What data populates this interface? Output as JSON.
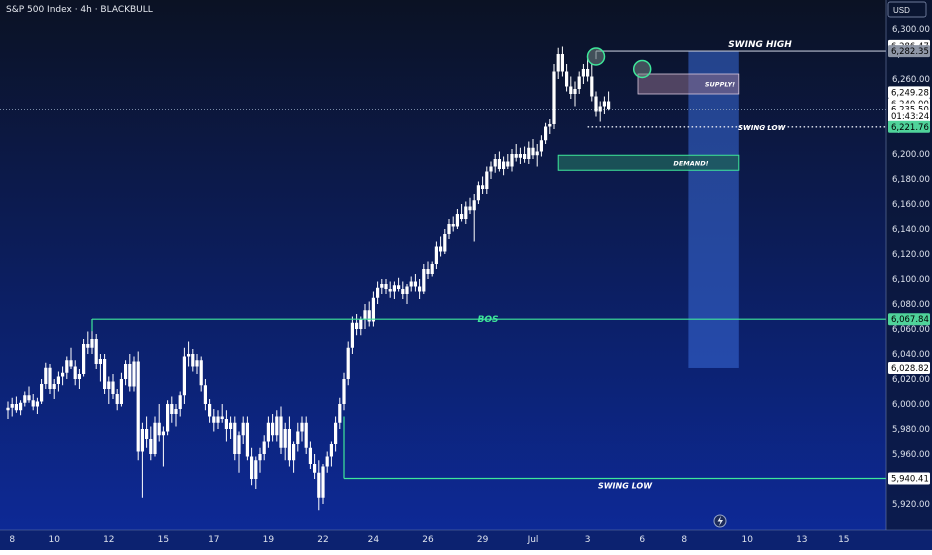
{
  "chart_data": {
    "type": "candlestick",
    "title": "S&P 500 Index · 4h · BLACKBULL",
    "currency": "USD",
    "colors": {
      "bg_top": "#0b1224",
      "bg_bottom": "#0d2a9a",
      "candle": "#ffffff",
      "zone_line": "#3ee79a",
      "label": "#3ee79a"
    },
    "y_axis": {
      "ticks": [
        "6,300.00",
        "6,280.00",
        "6,260.00",
        "6,240.00",
        "6,220.00",
        "6,200.00",
        "6,180.00",
        "6,160.00",
        "6,140.00",
        "6,120.00",
        "6,100.00",
        "6,080.00",
        "6,060.00",
        "6,040.00",
        "6,020.00",
        "6,000.00",
        "5,980.00",
        "5,960.00",
        "5,940.00",
        "5,920.00"
      ],
      "tick_values": [
        6300,
        6280,
        6260,
        6240,
        6220,
        6200,
        6180,
        6160,
        6140,
        6120,
        6100,
        6080,
        6060,
        6040,
        6020,
        6000,
        5980,
        5960,
        5940,
        5920
      ],
      "range": [
        5910,
        6305
      ]
    },
    "x_axis": {
      "ticks": [
        "8",
        "10",
        "12",
        "15",
        "17",
        "19",
        "22",
        "24",
        "26",
        "29",
        "Jul",
        "3",
        "6",
        "8",
        "10",
        "13",
        "15"
      ],
      "tick_index": [
        1,
        11,
        24,
        37,
        49,
        62,
        75,
        87,
        100,
        113,
        125,
        138,
        151,
        161,
        176,
        189,
        199
      ]
    },
    "price_labels": [
      {
        "text": "6,286.47",
        "value": 6286.47,
        "style": "white"
      },
      {
        "text": "6,282.35",
        "value": 6282.35,
        "style": "grey"
      },
      {
        "text": "6,249.28",
        "value": 6249.28,
        "style": "white"
      },
      {
        "text": "6,240.00",
        "value": 6240.0,
        "style": "partial"
      },
      {
        "text": "6,235.50",
        "value": 6235.5,
        "style": "white"
      },
      {
        "text": "01:43:24",
        "value": 6230.5,
        "style": "white"
      },
      {
        "text": "6,221.76",
        "value": 6221.76,
        "style": "green"
      },
      {
        "text": "6,067.84",
        "value": 6067.84,
        "style": "green"
      },
      {
        "text": "6,028.82",
        "value": 6028.82,
        "style": "white"
      },
      {
        "text": "5,940.41",
        "value": 5940.41,
        "style": "white"
      }
    ],
    "annotations": {
      "bos": {
        "label": "BOS",
        "price": 6067.84,
        "from": 20,
        "to": 205
      },
      "swing_low_bottom": {
        "label": "SWING LOW",
        "price": 5940.41,
        "from": 80,
        "to": 205
      },
      "swing_high": {
        "label": "SWING HIGH",
        "price": 6282.35,
        "from": 140,
        "to": 205
      },
      "swing_low_top": {
        "label": "SWING LOW",
        "price": 6221.76,
        "from": 138,
        "to": 205
      },
      "current_price": 6235.5,
      "supply": {
        "label": "SUPPLY!",
        "top": 6264.0,
        "bottom": 6248.0,
        "from": 150,
        "to": 174
      },
      "demand": {
        "label": "DEMAND!",
        "top": 6199.0,
        "bottom": 6187.0,
        "from": 131,
        "to": 174
      },
      "projection": {
        "top": 6282.35,
        "bottom": 6028.82,
        "from": 162,
        "to": 174
      }
    },
    "candles": [
      [
        5995,
        6002,
        5988,
        5997
      ],
      [
        5997,
        6005,
        5990,
        6000
      ],
      [
        6000,
        6006,
        5993,
        5995
      ],
      [
        5995,
        6003,
        5991,
        6001
      ],
      [
        6001,
        6010,
        5998,
        6007
      ],
      [
        6007,
        6014,
        6001,
        6003
      ],
      [
        6003,
        6008,
        5995,
        5998
      ],
      [
        5998,
        6005,
        5992,
        6002
      ],
      [
        6002,
        6020,
        6000,
        6016
      ],
      [
        6016,
        6033,
        6012,
        6029
      ],
      [
        6029,
        6032,
        6008,
        6012
      ],
      [
        6012,
        6020,
        6004,
        6016
      ],
      [
        6016,
        6026,
        6010,
        6022
      ],
      [
        6022,
        6030,
        6015,
        6025
      ],
      [
        6025,
        6038,
        6020,
        6035
      ],
      [
        6035,
        6045,
        6028,
        6030
      ],
      [
        6030,
        6035,
        6015,
        6020
      ],
      [
        6020,
        6028,
        6012,
        6024
      ],
      [
        6024,
        6052,
        6022,
        6048
      ],
      [
        6048,
        6058,
        6040,
        6045
      ],
      [
        6045,
        6068,
        6040,
        6052
      ],
      [
        6052,
        6056,
        6028,
        6032
      ],
      [
        6032,
        6040,
        6018,
        6036
      ],
      [
        6036,
        6040,
        6008,
        6012
      ],
      [
        6012,
        6022,
        6000,
        6018
      ],
      [
        6018,
        6024,
        6004,
        6008
      ],
      [
        6008,
        6012,
        5995,
        6000
      ],
      [
        6000,
        6025,
        5998,
        6020
      ],
      [
        6020,
        6035,
        6015,
        6032
      ],
      [
        6032,
        6040,
        6010,
        6014
      ],
      [
        6014,
        6038,
        6010,
        6034
      ],
      [
        6034,
        6042,
        5955,
        5962
      ],
      [
        5962,
        5985,
        5925,
        5980
      ],
      [
        5980,
        5990,
        5965,
        5972
      ],
      [
        5972,
        5982,
        5955,
        5960
      ],
      [
        5960,
        5990,
        5958,
        5985
      ],
      [
        5985,
        6000,
        5970,
        5975
      ],
      [
        5975,
        5982,
        5950,
        5978
      ],
      [
        5978,
        6003,
        5975,
        6000
      ],
      [
        6000,
        6006,
        5985,
        5992
      ],
      [
        5992,
        6000,
        5982,
        5996
      ],
      [
        5996,
        6010,
        5990,
        6007
      ],
      [
        6007,
        6045,
        6000,
        6038
      ],
      [
        6038,
        6050,
        6030,
        6040
      ],
      [
        6040,
        6044,
        6026,
        6030
      ],
      [
        6030,
        6040,
        6024,
        6035
      ],
      [
        6035,
        6038,
        6010,
        6015
      ],
      [
        6015,
        6020,
        5995,
        6000
      ],
      [
        6000,
        6004,
        5985,
        5990
      ],
      [
        5990,
        5996,
        5978,
        5985
      ],
      [
        5985,
        5995,
        5980,
        5990
      ],
      [
        5990,
        6000,
        5985,
        5988
      ],
      [
        5988,
        5995,
        5970,
        5980
      ],
      [
        5980,
        5990,
        5972,
        5985
      ],
      [
        5985,
        5990,
        5955,
        5960
      ],
      [
        5960,
        5978,
        5945,
        5975
      ],
      [
        5975,
        5990,
        5968,
        5985
      ],
      [
        5985,
        5990,
        5955,
        5958
      ],
      [
        5958,
        5965,
        5935,
        5940
      ],
      [
        5940,
        5958,
        5932,
        5955
      ],
      [
        5955,
        5965,
        5945,
        5960
      ],
      [
        5960,
        5975,
        5955,
        5970
      ],
      [
        5970,
        5990,
        5965,
        5985
      ],
      [
        5985,
        5992,
        5970,
        5975
      ],
      [
        5975,
        5995,
        5970,
        5990
      ],
      [
        5990,
        5998,
        5960,
        5965
      ],
      [
        5965,
        5985,
        5955,
        5980
      ],
      [
        5980,
        5990,
        5950,
        5955
      ],
      [
        5955,
        5970,
        5945,
        5968
      ],
      [
        5968,
        5985,
        5962,
        5978
      ],
      [
        5978,
        5990,
        5970,
        5985
      ],
      [
        5985,
        5990,
        5960,
        5965
      ],
      [
        5965,
        5970,
        5948,
        5952
      ],
      [
        5952,
        5960,
        5940,
        5945
      ],
      [
        5945,
        5955,
        5915,
        5925
      ],
      [
        5925,
        5952,
        5920,
        5950
      ],
      [
        5950,
        5962,
        5945,
        5958
      ],
      [
        5958,
        5970,
        5950,
        5968
      ],
      [
        5968,
        5990,
        5962,
        5985
      ],
      [
        5985,
        6005,
        5980,
        6000
      ],
      [
        6000,
        6025,
        5995,
        6020
      ],
      [
        6020,
        6050,
        6015,
        6045
      ],
      [
        6045,
        6070,
        6040,
        6065
      ],
      [
        6065,
        6072,
        6055,
        6060
      ],
      [
        6060,
        6070,
        6055,
        6068
      ],
      [
        6068,
        6080,
        6060,
        6075
      ],
      [
        6075,
        6082,
        6062,
        6066
      ],
      [
        6066,
        6090,
        6062,
        6085
      ],
      [
        6085,
        6098,
        6080,
        6093
      ],
      [
        6093,
        6100,
        6088,
        6096
      ],
      [
        6096,
        6100,
        6088,
        6092
      ],
      [
        6092,
        6098,
        6085,
        6090
      ],
      [
        6090,
        6098,
        6084,
        6095
      ],
      [
        6095,
        6101,
        6090,
        6092
      ],
      [
        6092,
        6098,
        6084,
        6088
      ],
      [
        6088,
        6096,
        6080,
        6094
      ],
      [
        6094,
        6102,
        6090,
        6098
      ],
      [
        6098,
        6104,
        6090,
        6094
      ],
      [
        6094,
        6100,
        6084,
        6090
      ],
      [
        6090,
        6112,
        6088,
        6108
      ],
      [
        6108,
        6114,
        6100,
        6104
      ],
      [
        6104,
        6114,
        6102,
        6112
      ],
      [
        6112,
        6130,
        6108,
        6126
      ],
      [
        6126,
        6134,
        6118,
        6122
      ],
      [
        6122,
        6140,
        6120,
        6136
      ],
      [
        6136,
        6148,
        6132,
        6144
      ],
      [
        6144,
        6150,
        6138,
        6142
      ],
      [
        6142,
        6156,
        6140,
        6152
      ],
      [
        6152,
        6160,
        6146,
        6148
      ],
      [
        6148,
        6162,
        6144,
        6158
      ],
      [
        6158,
        6165,
        6152,
        6155
      ],
      [
        6155,
        6168,
        6130,
        6163
      ],
      [
        6163,
        6178,
        6160,
        6175
      ],
      [
        6175,
        6182,
        6168,
        6172
      ],
      [
        6172,
        6190,
        6168,
        6186
      ],
      [
        6186,
        6194,
        6180,
        6190
      ],
      [
        6190,
        6200,
        6185,
        6196
      ],
      [
        6196,
        6202,
        6186,
        6188
      ],
      [
        6188,
        6198,
        6183,
        6194
      ],
      [
        6194,
        6200,
        6188,
        6190
      ],
      [
        6190,
        6204,
        6186,
        6200
      ],
      [
        6200,
        6208,
        6194,
        6197
      ],
      [
        6197,
        6205,
        6192,
        6200
      ],
      [
        6200,
        6206,
        6193,
        6196
      ],
      [
        6196,
        6210,
        6192,
        6205
      ],
      [
        6205,
        6212,
        6196,
        6199
      ],
      [
        6199,
        6208,
        6190,
        6202
      ],
      [
        6202,
        6215,
        6198,
        6211
      ],
      [
        6211,
        6225,
        6208,
        6222
      ],
      [
        6222,
        6228,
        6216,
        6224
      ],
      [
        6224,
        6272,
        6220,
        6266
      ],
      [
        6266,
        6285,
        6260,
        6280
      ],
      [
        6280,
        6286,
        6262,
        6266
      ],
      [
        6266,
        6272,
        6250,
        6254
      ],
      [
        6254,
        6262,
        6244,
        6248
      ],
      [
        6248,
        6258,
        6238,
        6252
      ],
      [
        6252,
        6266,
        6248,
        6262
      ],
      [
        6262,
        6272,
        6256,
        6268
      ],
      [
        6268,
        6276,
        6258,
        6262
      ],
      [
        6262,
        6272,
        6242,
        6246
      ],
      [
        6246,
        6250,
        6230,
        6234
      ],
      [
        6234,
        6242,
        6226,
        6238
      ],
      [
        6238,
        6246,
        6232,
        6242
      ],
      [
        6242,
        6250,
        6235,
        6236
      ]
    ]
  }
}
